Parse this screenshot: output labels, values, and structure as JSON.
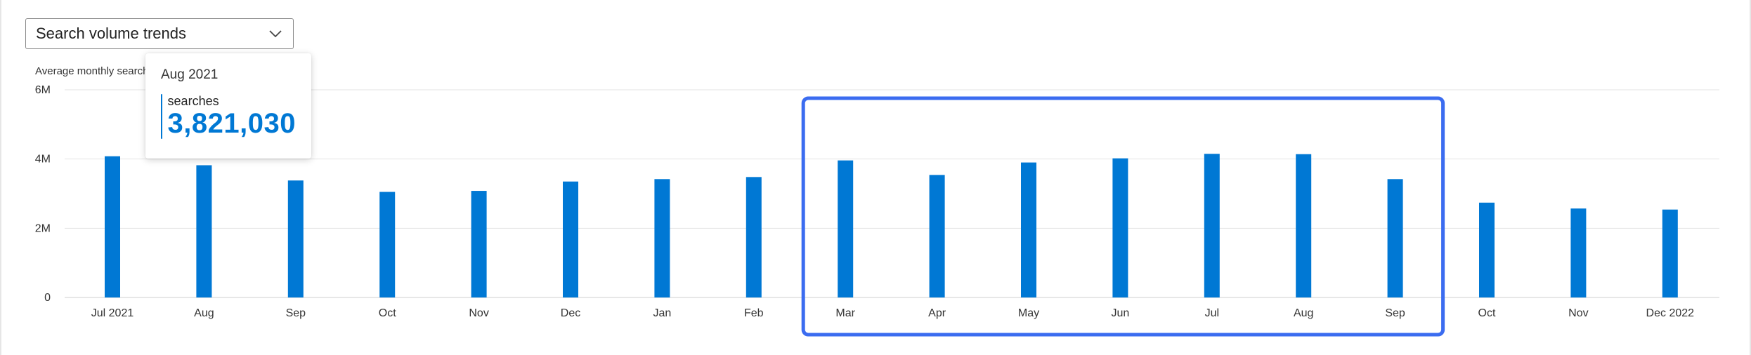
{
  "dropdown": {
    "label": "Search volume trends"
  },
  "colors": {
    "bar": "#0078d4",
    "highlight": "#3b6cf0",
    "grid": "#e3e3e3",
    "axis_text": "#333333"
  },
  "tooltip": {
    "title": "Aug 2021",
    "series": "searches",
    "value": "3,821,030"
  },
  "chart_data": {
    "type": "bar",
    "title": "",
    "ylabel": "Average monthly searches",
    "xlabel": "",
    "ylim": [
      0,
      6000000
    ],
    "yticks": [
      {
        "value": 0,
        "label": "0"
      },
      {
        "value": 2000000,
        "label": "2M"
      },
      {
        "value": 4000000,
        "label": "4M"
      },
      {
        "value": 6000000,
        "label": "6M"
      }
    ],
    "categories": [
      "Jul 2021",
      "Aug",
      "Sep",
      "Oct",
      "Nov",
      "Dec",
      "Jan",
      "Feb",
      "Mar",
      "Apr",
      "May",
      "Jun",
      "Jul",
      "Aug",
      "Sep",
      "Oct",
      "Nov",
      "Dec 2022"
    ],
    "series": [
      {
        "name": "searches",
        "values": [
          4080000,
          3821030,
          3380000,
          3050000,
          3080000,
          3350000,
          3420000,
          3480000,
          3960000,
          3540000,
          3900000,
          4020000,
          4150000,
          4140000,
          3420000,
          2740000,
          2570000,
          2540000
        ]
      }
    ],
    "highlight_range": {
      "from_index": 8,
      "to_index": 14
    },
    "grid": true
  }
}
